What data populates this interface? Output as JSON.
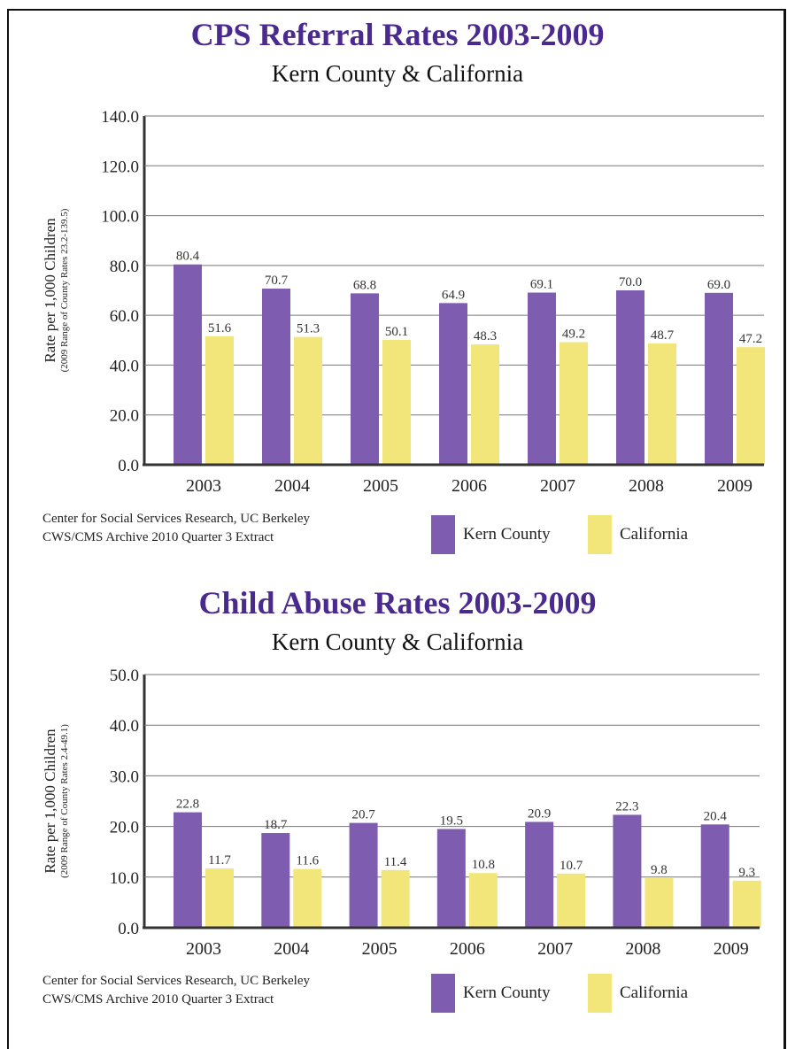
{
  "colors": {
    "kern": "#7e5db0",
    "california": "#f2e57a",
    "title": "#4b2a8f"
  },
  "chart_data": [
    {
      "type": "bar",
      "title": "CPS Referral Rates 2003-2009",
      "subtitle": "Kern County & California",
      "ylabel": "Rate per 1,000 Children",
      "ylabel_note": "(2009 Range of County Rates 23.2-139.5)",
      "categories": [
        "2003",
        "2004",
        "2005",
        "2006",
        "2007",
        "2008",
        "2009"
      ],
      "series": [
        {
          "name": "Kern County",
          "values": [
            80.4,
            70.7,
            68.8,
            64.9,
            69.1,
            70.0,
            69.0
          ]
        },
        {
          "name": "California",
          "values": [
            51.6,
            51.3,
            50.1,
            48.3,
            49.2,
            48.7,
            47.2
          ]
        }
      ],
      "value_labels": {
        "Kern County": [
          "80.4",
          "70.7",
          "68.8",
          "64.9",
          "69.1",
          "70.0",
          "69.0"
        ],
        "California": [
          "51.6",
          "51.3",
          "50.1",
          "48.3",
          "49.2",
          "48.7",
          "47.2"
        ]
      },
      "ylim": [
        0,
        140
      ],
      "yticks": [
        0,
        20,
        40,
        60,
        80,
        100,
        120,
        140
      ],
      "ytick_labels": [
        "0.0",
        "20.0",
        "40.0",
        "60.0",
        "80.0",
        "100.0",
        "120.0",
        "140.0"
      ],
      "grid": true,
      "legend": "bottom-right",
      "source": [
        "Center for Social Services Research, UC Berkeley",
        "CWS/CMS Archive 2010 Quarter 3 Extract"
      ]
    },
    {
      "type": "bar",
      "title": "Child Abuse Rates 2003-2009",
      "subtitle": "Kern County & California",
      "ylabel": "Rate per 1,000 Children",
      "ylabel_note": "(2009 Range of County Rates 2.4-49.1)",
      "categories": [
        "2003",
        "2004",
        "2005",
        "2006",
        "2007",
        "2008",
        "2009"
      ],
      "series": [
        {
          "name": "Kern County",
          "values": [
            22.8,
            18.7,
            20.7,
            19.5,
            20.9,
            22.3,
            20.4
          ]
        },
        {
          "name": "California",
          "values": [
            11.7,
            11.6,
            11.4,
            10.8,
            10.7,
            9.8,
            9.3
          ]
        }
      ],
      "value_labels": {
        "Kern County": [
          "22.8",
          "18.7",
          "20.7",
          "19.5",
          "20.9",
          "22.3",
          "20.4"
        ],
        "California": [
          "11.7",
          "11.6",
          "11.4",
          "10.8",
          "10.7",
          "9.8",
          "9.3"
        ]
      },
      "ylim": [
        0,
        50
      ],
      "yticks": [
        0,
        10,
        20,
        30,
        40,
        50
      ],
      "ytick_labels": [
        "0.0",
        "10.0",
        "20.0",
        "30.0",
        "40.0",
        "50.0"
      ],
      "grid": true,
      "legend": "bottom-right",
      "source": [
        "Center for Social Services Research, UC Berkeley",
        "CWS/CMS Archive 2010 Quarter 3 Extract"
      ]
    }
  ]
}
